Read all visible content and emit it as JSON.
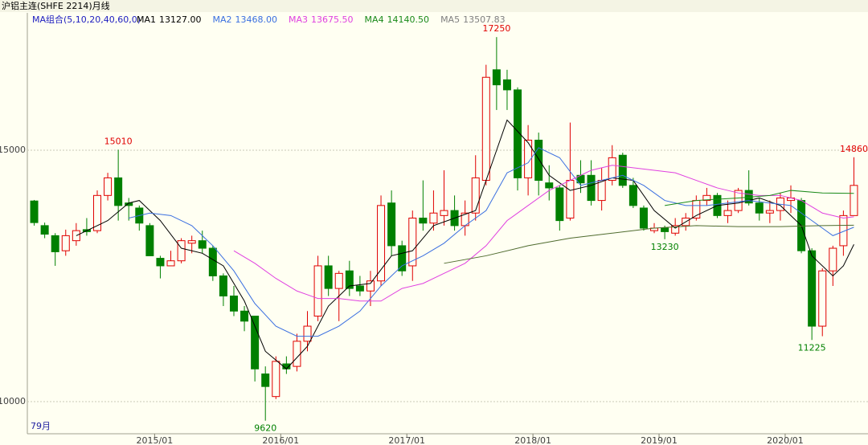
{
  "chart_data": {
    "type": "candlestick",
    "title": "沪铝主连(SHFE 2214)月线",
    "ma_legend": "MA组合(5,10,20,40,60,0)",
    "count_label": "79月",
    "ylim": [
      9360,
      17700
    ],
    "yticks": [
      10000,
      15000
    ],
    "grid": true,
    "xlim": [
      -0.5,
      78.5
    ],
    "xticks": [
      {
        "value": 11,
        "label": "2015/01"
      },
      {
        "value": 23,
        "label": "2016/01"
      },
      {
        "value": 35,
        "label": "2017/01"
      },
      {
        "value": 47,
        "label": "2018/01"
      },
      {
        "value": 59,
        "label": "2019/01"
      },
      {
        "value": 71,
        "label": "2020/01"
      }
    ],
    "up_color": "#e00000",
    "down_color": "#008000",
    "open": [
      13990,
      13500,
      13300,
      13000,
      13200,
      13420,
      13400,
      14100,
      14450,
      13950,
      13850,
      13500,
      12850,
      12700,
      12800,
      13150,
      13200,
      13050,
      12500,
      12100,
      11800,
      11700,
      10550,
      10100,
      10750,
      10700,
      11200,
      11700,
      12700,
      12250,
      12600,
      12300,
      12200,
      12400,
      13950,
      13100,
      12700,
      13650,
      13550,
      13700,
      13800,
      13500,
      13750,
      14400,
      16600,
      16400,
      16200,
      14450,
      15200,
      14350,
      14250,
      13650,
      14500,
      14500,
      14000,
      14400,
      14900,
      14300,
      13850,
      13400,
      13450,
      13350,
      13500,
      13650,
      14000,
      14100,
      13700,
      13800,
      14200,
      13950,
      13750,
      13800,
      14000,
      14000,
      13000,
      11500,
      12600,
      13100,
      13700
    ],
    "high": [
      14010,
      13560,
      13350,
      13420,
      13550,
      13650,
      14200,
      14550,
      15010,
      14050,
      13900,
      13550,
      12900,
      13000,
      13250,
      13300,
      13400,
      13100,
      12550,
      12300,
      11900,
      11700,
      10700,
      10900,
      10900,
      11350,
      11800,
      12900,
      12900,
      12600,
      12800,
      12500,
      12600,
      14100,
      14200,
      13200,
      13800,
      14400,
      14200,
      14600,
      14100,
      14000,
      14900,
      16700,
      17250,
      16600,
      16250,
      15500,
      15350,
      14700,
      14300,
      15550,
      14800,
      14800,
      14650,
      15100,
      14950,
      14450,
      13900,
      13550,
      13500,
      13650,
      13750,
      14100,
      14250,
      14150,
      14000,
      14250,
      14600,
      14050,
      14000,
      14150,
      14300,
      14050,
      13050,
      12650,
      13100,
      13800,
      14860
    ],
    "low": [
      13500,
      13250,
      12700,
      12900,
      13100,
      13300,
      13350,
      14000,
      13600,
      13600,
      13400,
      12900,
      12450,
      12700,
      12750,
      12950,
      12950,
      12400,
      11900,
      11700,
      11400,
      10400,
      9620,
      10050,
      10550,
      10600,
      11000,
      11600,
      12100,
      11600,
      12100,
      12100,
      11900,
      12300,
      12900,
      12500,
      12400,
      13400,
      13400,
      13500,
      13400,
      13300,
      13600,
      14300,
      15800,
      15800,
      14200,
      14100,
      14100,
      14000,
      13400,
      13600,
      14150,
      13900,
      13800,
      14300,
      14250,
      13850,
      13400,
      13350,
      13230,
      13300,
      13400,
      13600,
      13900,
      13650,
      13550,
      13750,
      13900,
      13600,
      13550,
      13600,
      13750,
      12950,
      11225,
      11300,
      12300,
      12900,
      13700
    ],
    "close": [
      13560,
      13330,
      12980,
      13300,
      13400,
      13380,
      14100,
      14450,
      13900,
      13900,
      13550,
      12900,
      12700,
      12800,
      13200,
      13200,
      13050,
      12500,
      12100,
      11800,
      11600,
      10650,
      10300,
      10800,
      10650,
      11200,
      11500,
      12700,
      12250,
      12550,
      12250,
      12200,
      12400,
      13900,
      13100,
      12600,
      13650,
      13550,
      13750,
      13800,
      13500,
      13750,
      14450,
      16450,
      16300,
      16200,
      14450,
      15200,
      14400,
      14250,
      13600,
      14400,
      14350,
      14000,
      14400,
      14850,
      14300,
      13900,
      13450,
      13450,
      13380,
      13500,
      13650,
      14000,
      14100,
      13700,
      13800,
      14200,
      13950,
      13750,
      13800,
      14050,
      14050,
      13000,
      11500,
      12600,
      13050,
      13700,
      14300
    ],
    "annotations": [
      {
        "x": 8,
        "value": 15010,
        "position": "above"
      },
      {
        "x": 44,
        "value": 17250,
        "position": "above"
      },
      {
        "x": 78,
        "value": 14860,
        "position": "above"
      },
      {
        "x": 22,
        "value": 9620,
        "position": "below"
      },
      {
        "x": 60,
        "value": 13230,
        "position": "below"
      },
      {
        "x": 74,
        "value": 11225,
        "position": "below"
      }
    ],
    "ma": [
      {
        "name": "MA1",
        "legend_value": "13127.00",
        "color": "#000000",
        "x": [
          4,
          7,
          9,
          10,
          12,
          14,
          16,
          18,
          20,
          22,
          24,
          26,
          28,
          30,
          32,
          34,
          36,
          38,
          40,
          42,
          44,
          45,
          47,
          49,
          51,
          53,
          55,
          57,
          59,
          61,
          63,
          65,
          67,
          69,
          71,
          73,
          74,
          76,
          77,
          78
        ],
        "values": [
          13300,
          13600,
          13950,
          14000,
          13600,
          13050,
          12950,
          12700,
          12000,
          11000,
          10650,
          11100,
          11900,
          12300,
          12350,
          12900,
          13000,
          13500,
          13650,
          13800,
          15000,
          15600,
          15150,
          14500,
          14200,
          14300,
          14450,
          14400,
          13800,
          13450,
          13700,
          13900,
          13950,
          14050,
          13900,
          13500,
          12900,
          12500,
          12700,
          13127
        ]
      },
      {
        "name": "MA2",
        "legend_value": "13468.00",
        "color": "#3a6fe0",
        "x": [
          9,
          11,
          13,
          15,
          17,
          19,
          21,
          23,
          25,
          27,
          29,
          31,
          33,
          35,
          37,
          39,
          41,
          43,
          45,
          47,
          48,
          50,
          52,
          54,
          56,
          58,
          60,
          62,
          64,
          66,
          68,
          70,
          72,
          74,
          76,
          78
        ],
        "values": [
          13650,
          13750,
          13700,
          13500,
          13100,
          12600,
          11950,
          11500,
          11300,
          11300,
          11500,
          11800,
          12300,
          12700,
          12900,
          13150,
          13500,
          13800,
          14550,
          14750,
          15050,
          14850,
          14300,
          14400,
          14500,
          14300,
          14000,
          13900,
          13900,
          13950,
          14000,
          13950,
          13900,
          13600,
          13300,
          13468
        ]
      },
      {
        "name": "MA3",
        "legend_value": "13675.50",
        "color": "#e040e0",
        "x": [
          19,
          21,
          23,
          25,
          27,
          29,
          31,
          33,
          35,
          37,
          39,
          41,
          43,
          45,
          47,
          49,
          51,
          53,
          55,
          57,
          59,
          61,
          63,
          65,
          67,
          69,
          71,
          73,
          75,
          77,
          78
        ],
        "values": [
          13000,
          12750,
          12450,
          12200,
          12050,
          12050,
          12000,
          12000,
          12250,
          12350,
          12550,
          12750,
          13100,
          13600,
          13900,
          14200,
          14400,
          14600,
          14700,
          14650,
          14600,
          14550,
          14400,
          14250,
          14150,
          14100,
          14100,
          14000,
          13750,
          13650,
          13675.5
        ]
      },
      {
        "name": "MA4",
        "legend_value": "14140.50",
        "color": "#1a8a1a",
        "x": [
          60,
          63,
          67,
          70,
          72,
          75,
          78
        ],
        "values": [
          13900,
          14000,
          14050,
          14100,
          14200,
          14150,
          14140.5
        ]
      },
      {
        "name": "MA5",
        "legend_value": "13507.83",
        "color": "#4f6b2f",
        "x": [
          39,
          43,
          47,
          51,
          55,
          59,
          63,
          67,
          71,
          75,
          78
        ],
        "values": [
          12750,
          12900,
          13100,
          13250,
          13350,
          13450,
          13500,
          13480,
          13480,
          13500,
          13507.83
        ]
      }
    ]
  }
}
